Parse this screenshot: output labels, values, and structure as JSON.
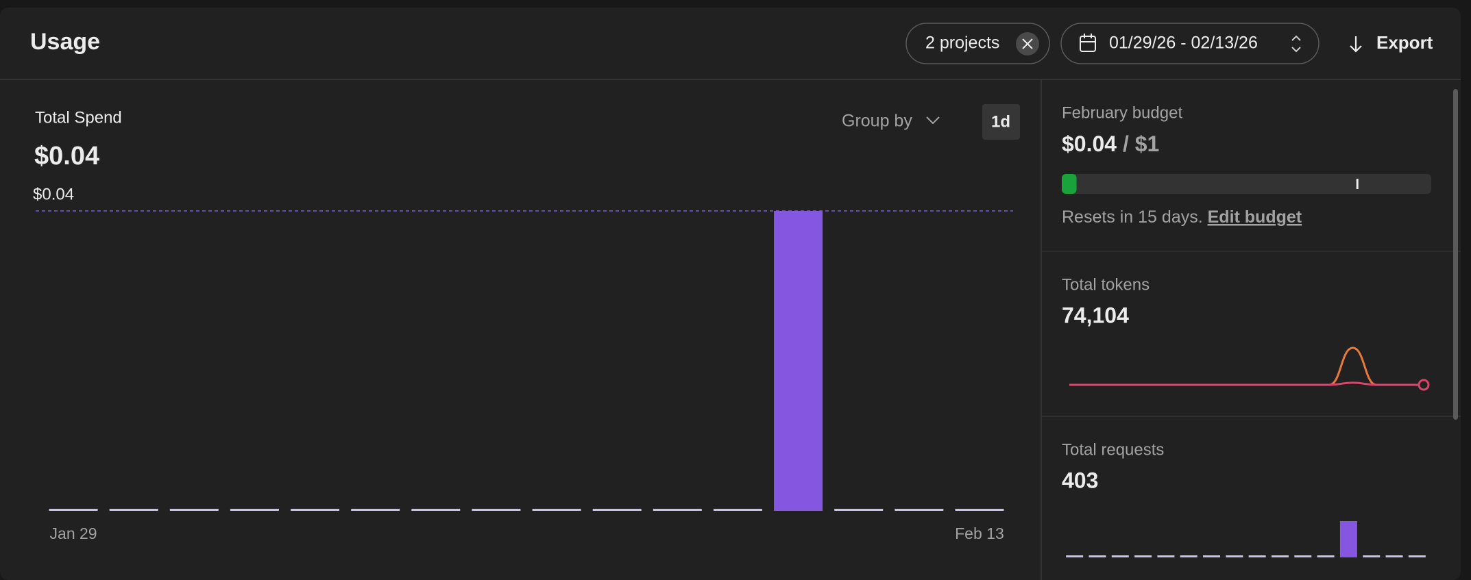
{
  "header": {
    "title": "Usage",
    "projects_filter": "2 projects",
    "date_range": "01/29/26 - 02/13/26",
    "export": "Export"
  },
  "controls": {
    "group_by": "Group by",
    "granularity": "1d"
  },
  "budget": {
    "title": "February budget",
    "spent_label": "$0.04",
    "separator": "/",
    "limit_label": "$1",
    "spent": 0.04,
    "limit": 1,
    "alert_threshold": 0.8,
    "reset_text": "Resets in 15 days.",
    "edit_link": "Edit budget"
  },
  "chart_data": [
    {
      "type": "bar",
      "title": "Total Spend",
      "total": "$0.04",
      "categories": [
        "Jan 29",
        null,
        null,
        null,
        null,
        null,
        null,
        null,
        null,
        null,
        null,
        null,
        null,
        null,
        null,
        "Feb 13"
      ],
      "values": [
        0,
        0,
        0,
        0,
        0,
        0,
        0,
        0,
        0,
        0,
        0,
        0,
        0.04,
        0,
        0,
        0
      ],
      "color": "#8557e0",
      "reference_line": {
        "value": 0.04,
        "label": "$0.04"
      }
    },
    {
      "type": "line",
      "title": "Total tokens",
      "total": "74,104",
      "series": [
        {
          "color": "#e8793a",
          "values": [
            0,
            0,
            0,
            0,
            0,
            0,
            0,
            0,
            0,
            0,
            0,
            0,
            70000,
            0,
            0,
            0
          ]
        },
        {
          "color": "#d9456e",
          "values": [
            0,
            0,
            0,
            0,
            0,
            0,
            0,
            0,
            0,
            0,
            0,
            0,
            4000,
            0,
            0,
            0
          ]
        }
      ]
    },
    {
      "type": "bar",
      "title": "Total requests",
      "total": "403",
      "values": [
        0,
        0,
        0,
        0,
        0,
        0,
        0,
        0,
        0,
        0,
        0,
        0,
        403,
        0,
        0,
        0
      ],
      "color": "#8557e0"
    }
  ]
}
